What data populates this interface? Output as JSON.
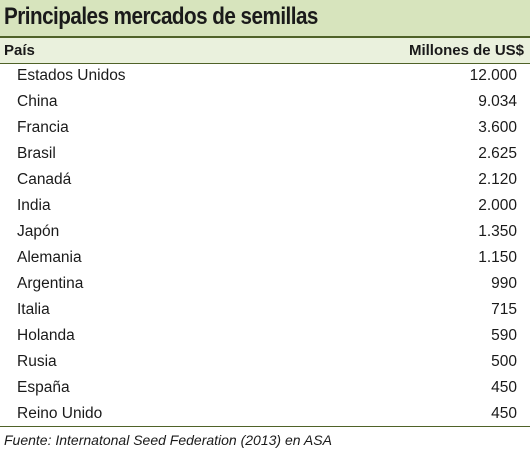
{
  "title": "Principales mercados de semillas",
  "header": {
    "country": "País",
    "value": "Millones de US$"
  },
  "rows": [
    {
      "country": "Estados Unidos",
      "value": "12.000"
    },
    {
      "country": "China",
      "value": "9.034"
    },
    {
      "country": "Francia",
      "value": "3.600"
    },
    {
      "country": "Brasil",
      "value": "2.625"
    },
    {
      "country": "Canadá",
      "value": "2.120"
    },
    {
      "country": "India",
      "value": "2.000"
    },
    {
      "country": "Japón",
      "value": "1.350"
    },
    {
      "country": "Alemania",
      "value": "1.150"
    },
    {
      "country": "Argentina",
      "value": "990"
    },
    {
      "country": "Italia",
      "value": "715"
    },
    {
      "country": "Holanda",
      "value": "590"
    },
    {
      "country": "Rusia",
      "value": "500"
    },
    {
      "country": "España",
      "value": "450"
    },
    {
      "country": "Reino Unido",
      "value": "450"
    }
  ],
  "source": "Fuente: Internatonal Seed Federation (2013) en ASA",
  "colors": {
    "title_background": "#d7e4bd",
    "header_background": "#eaf1dd",
    "rule": "#4f6228"
  }
}
